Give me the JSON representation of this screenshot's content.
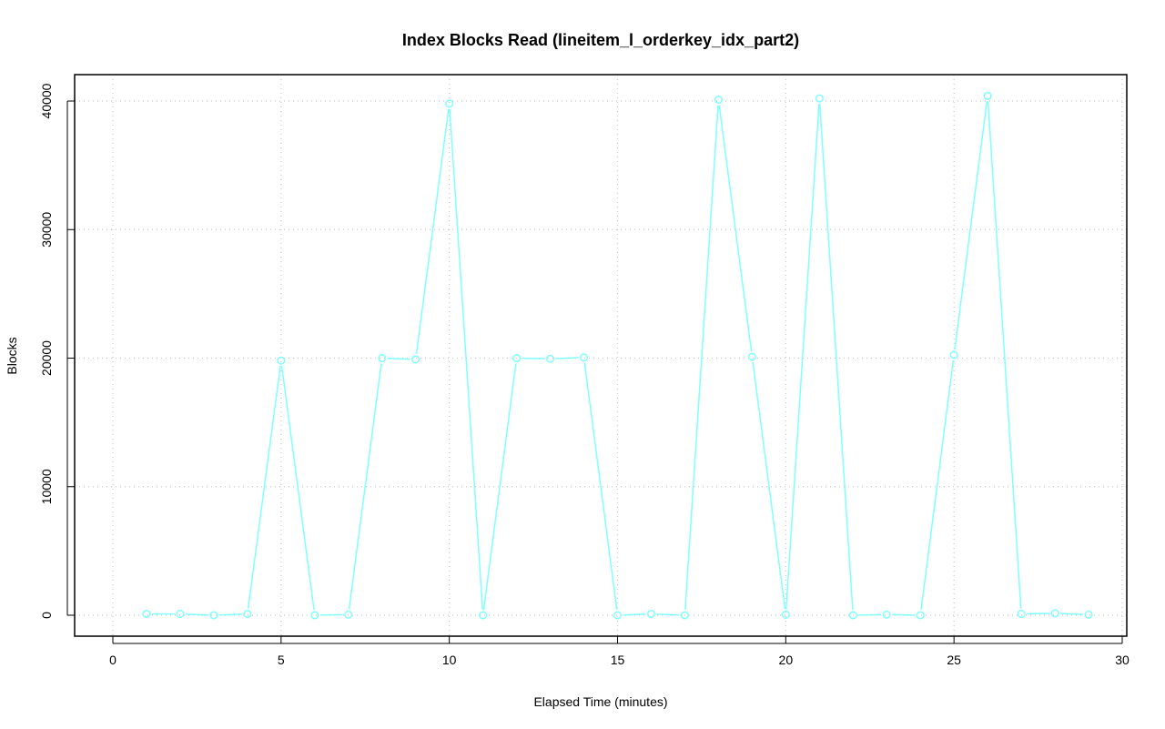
{
  "chart_data": {
    "type": "line",
    "title": "Index Blocks Read (lineitem_l_orderkey_idx_part2)",
    "xlabel": "Elapsed Time (minutes)",
    "ylabel": "Blocks",
    "xlim": [
      0,
      30
    ],
    "ylim": [
      0,
      40000
    ],
    "x_ticks": [
      0,
      5,
      10,
      15,
      20,
      25,
      30
    ],
    "y_ticks": [
      0,
      10000,
      20000,
      30000,
      40000
    ],
    "grid": true,
    "line_color": "#80ffff",
    "x": [
      1,
      2,
      3,
      4,
      5,
      6,
      7,
      8,
      9,
      10,
      11,
      12,
      13,
      14,
      15,
      16,
      17,
      18,
      19,
      20,
      21,
      22,
      23,
      24,
      25,
      26,
      27,
      28,
      29
    ],
    "y": [
      100,
      100,
      0,
      100,
      19800,
      0,
      50,
      20000,
      19900,
      39800,
      0,
      20000,
      19950,
      20050,
      0,
      100,
      0,
      40100,
      20100,
      50,
      40200,
      0,
      50,
      0,
      20250,
      40400,
      100,
      150,
      50
    ]
  }
}
